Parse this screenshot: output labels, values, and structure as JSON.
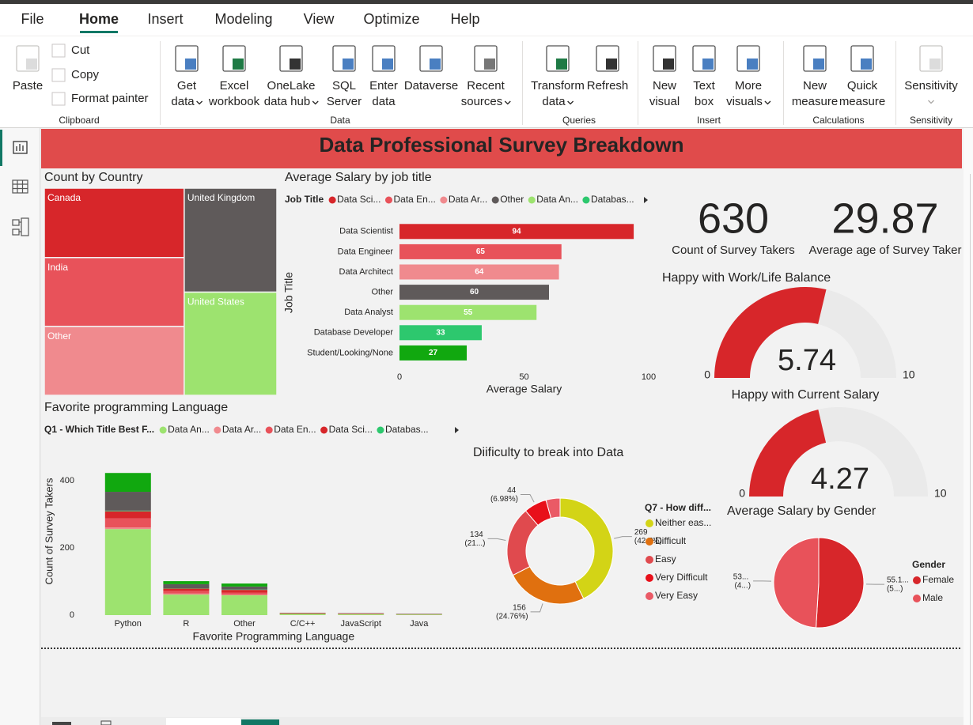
{
  "ribbon": {
    "tabs": [
      "File",
      "Home",
      "Insert",
      "Modeling",
      "View",
      "Optimize",
      "Help"
    ],
    "active_tab": 1,
    "groups": [
      {
        "name": "Clipboard",
        "disabled": true,
        "buttons": [
          {
            "lines": [
              "Paste"
            ]
          }
        ],
        "small_buttons": [
          "Cut",
          "Copy",
          "Format painter"
        ]
      },
      {
        "name": "Data",
        "buttons": [
          {
            "lines": [
              "Get",
              "data"
            ],
            "dropdown": true
          },
          {
            "lines": [
              "Excel",
              "workbook"
            ]
          },
          {
            "lines": [
              "OneLake",
              "data hub"
            ],
            "dropdown": true
          },
          {
            "lines": [
              "SQL",
              "Server"
            ]
          },
          {
            "lines": [
              "Enter",
              "data"
            ]
          },
          {
            "lines": [
              "Dataverse"
            ]
          },
          {
            "lines": [
              "Recent",
              "sources"
            ],
            "dropdown": true
          }
        ]
      },
      {
        "name": "Queries",
        "buttons": [
          {
            "lines": [
              "Transform",
              "data"
            ],
            "dropdown": true
          },
          {
            "lines": [
              "Refresh"
            ]
          }
        ]
      },
      {
        "name": "Insert",
        "buttons": [
          {
            "lines": [
              "New",
              "visual"
            ]
          },
          {
            "lines": [
              "Text",
              "box"
            ]
          },
          {
            "lines": [
              "More",
              "visuals"
            ],
            "dropdown": true
          }
        ]
      },
      {
        "name": "Calculations",
        "buttons": [
          {
            "lines": [
              "New",
              "measure"
            ]
          },
          {
            "lines": [
              "Quick",
              "measure"
            ]
          }
        ]
      },
      {
        "name": "Sensitivity",
        "disabled": true,
        "buttons": [
          {
            "lines": [
              "Sensitivity"
            ],
            "dropdown": true
          }
        ]
      }
    ]
  },
  "report": {
    "title": "Data Professional Survey Breakdown"
  },
  "chart_data": [
    {
      "type": "treemap",
      "title": "Count by Country",
      "categories": [
        "Canada",
        "India",
        "Other",
        "United Kingdom",
        "United States"
      ],
      "values": [
        127,
        126,
        126,
        126,
        125
      ],
      "colors": [
        "#d7262a",
        "#e8525a",
        "#f08a8e",
        "#5f5a5a",
        "#9de36f"
      ]
    },
    {
      "type": "bar",
      "orientation": "horizontal",
      "title": "Average Salary by job title",
      "legend_title": "Job Title",
      "legend_labels": [
        "Data Sci...",
        "Data En...",
        "Data Ar...",
        "Other",
        "Data An...",
        "Databas..."
      ],
      "categories": [
        "Data Scientist",
        "Data Engineer",
        "Data Architect",
        "Other",
        "Data Analyst",
        "Database Developer",
        "Student/Looking/None"
      ],
      "values": [
        94,
        65,
        64,
        60,
        55,
        33,
        27
      ],
      "colors": [
        "#d7262a",
        "#e8525a",
        "#f08a8e",
        "#5f5a5a",
        "#9de36f",
        "#2dc86e",
        "#11a80f"
      ],
      "xlim": [
        0,
        100
      ],
      "xticks": [
        0,
        50,
        100
      ],
      "x_label": "Average Salary",
      "y_label": "Job Title"
    },
    {
      "type": "stacked_bar",
      "title": "Favorite programming Language",
      "legend_title": "Q1 - Which Title Best F...",
      "categories": [
        "Python",
        "R",
        "Other",
        "C/C++",
        "JavaScript",
        "Java"
      ],
      "series": [
        {
          "name": "Data An...",
          "color": "#9de36f",
          "values": [
            256,
            61,
            59,
            4,
            3,
            2
          ]
        },
        {
          "name": "Data Ar...",
          "color": "#f08a8e",
          "values": [
            5,
            3,
            2,
            0,
            0,
            0
          ]
        },
        {
          "name": "Data En...",
          "color": "#e8525a",
          "values": [
            27,
            8,
            6,
            1,
            1,
            0
          ]
        },
        {
          "name": "Data Sci...",
          "color": "#d7262a",
          "values": [
            21,
            7,
            8,
            1,
            1,
            1
          ]
        },
        {
          "name": "Databas...",
          "color": "#2dc86e",
          "values": [
            2,
            1,
            1,
            0,
            0,
            0
          ]
        },
        {
          "color": "#5f5a5a",
          "values": [
            56,
            12,
            9,
            1,
            1,
            1
          ]
        },
        {
          "color": "#11a80f",
          "values": [
            56,
            9,
            9,
            0,
            0,
            0
          ]
        }
      ],
      "ylim": [
        0,
        440
      ],
      "yticks": [
        0,
        200,
        400
      ],
      "x_label": "Favorite Programming Language",
      "y_label": "Count of Survey Takers"
    },
    {
      "type": "donut",
      "title": "Diificulty to break into Data",
      "legend_title": "Q7 - How diff...",
      "categories": [
        "Neither eas...",
        "Difficult",
        "Easy",
        "Very Difficult",
        "Very Easy"
      ],
      "values": [
        269,
        156,
        134,
        44,
        27
      ],
      "value_labels": [
        "269 (42.7%)",
        "156 (24.76%)",
        "134 (21...)",
        "44 (6.98%)",
        null
      ],
      "colors": [
        "#d3d416",
        "#e0700f",
        "#e04a4e",
        "#e8101a",
        "#ea5a66"
      ]
    },
    {
      "type": "pie",
      "title": "Average Salary by Gender",
      "legend_title": "Gender",
      "categories": [
        "Female",
        "Male"
      ],
      "values": [
        55.1,
        53
      ],
      "value_labels": [
        "55.1... (5...)",
        "53... (4...)"
      ],
      "colors": [
        "#d7262a",
        "#e8525a"
      ]
    },
    {
      "type": "card",
      "value": 630,
      "label": "Count of Survey Takers"
    },
    {
      "type": "card",
      "value": 29.87,
      "label": "Average age of Survey Taker"
    },
    {
      "type": "gauge",
      "title": "Happy with Work/Life Balance",
      "value": 5.74,
      "min": 0,
      "max": 10,
      "color": "#d7262a"
    },
    {
      "type": "gauge",
      "title": "Happy with Current Salary",
      "value": 4.27,
      "min": 0,
      "max": 10,
      "color": "#d7262a"
    }
  ]
}
